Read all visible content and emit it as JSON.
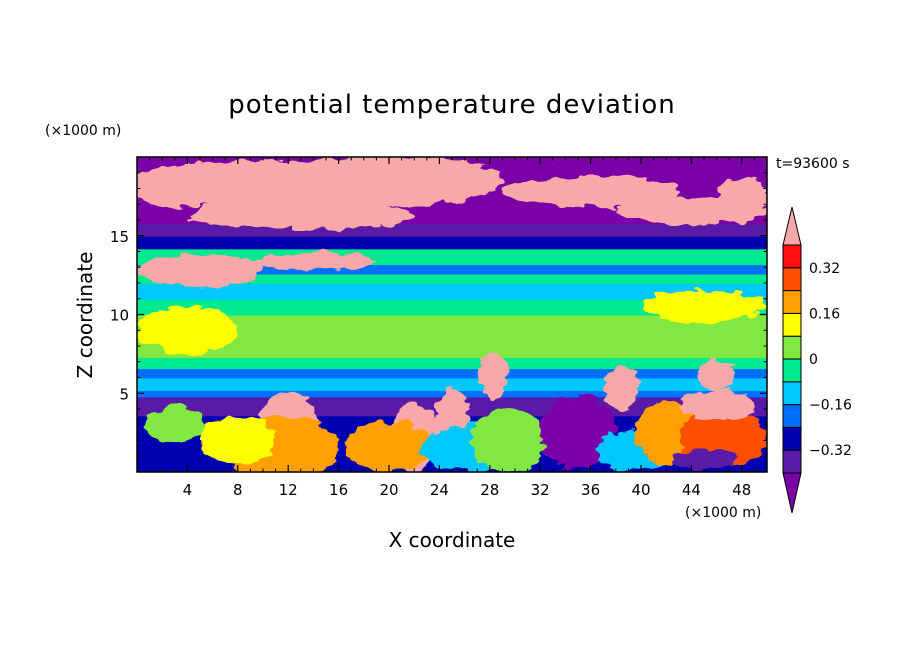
{
  "chart_data": {
    "type": "heatmap",
    "title": "potential temperature deviation",
    "xlabel": "X coordinate",
    "ylabel": "Z coordinate",
    "x_units": "(×1000 m)",
    "y_units": "(×1000 m)",
    "time_label": "t=93600 s",
    "xlim": [
      0,
      50
    ],
    "ylim": [
      0,
      20
    ],
    "x_ticks": [
      4,
      8,
      12,
      16,
      20,
      24,
      28,
      32,
      36,
      40,
      44,
      48
    ],
    "y_ticks": [
      5,
      10,
      15
    ],
    "colorbar": {
      "levels": [
        -0.4,
        -0.32,
        -0.24,
        -0.16,
        -0.08,
        0,
        0.08,
        0.16,
        0.24,
        0.32,
        0.4
      ],
      "labeled_ticks": [
        "0.32",
        "0.16",
        "0",
        "−0.16",
        "−0.32"
      ],
      "labeled_values": [
        0.32,
        0.16,
        0,
        -0.16,
        -0.32
      ],
      "colors_low_to_high": [
        "#7b00a8",
        "#5a1aa8",
        "#0000b0",
        "#0070ff",
        "#00c8ff",
        "#00e890",
        "#80e840",
        "#ffff00",
        "#ffa000",
        "#ff5000",
        "#ff1010",
        "#f8a8a8"
      ],
      "extend": "both"
    },
    "bands": [
      {
        "z0": 0,
        "z1": 1.8,
        "value": -0.3
      },
      {
        "z0": 1.8,
        "z1": 3.6,
        "value": -0.3
      },
      {
        "z0": 3.6,
        "z1": 4.8,
        "value": -0.36
      },
      {
        "z0": 4.8,
        "z1": 5.2,
        "value": -0.2
      },
      {
        "z0": 5.2,
        "z1": 6.0,
        "value": -0.1
      },
      {
        "z0": 6.0,
        "z1": 6.6,
        "value": -0.2
      },
      {
        "z0": 6.6,
        "z1": 7.3,
        "value": -0.04
      },
      {
        "z0": 7.3,
        "z1": 10.0,
        "value": 0.04
      },
      {
        "z0": 10.0,
        "z1": 11.0,
        "value": -0.02
      },
      {
        "z0": 11.0,
        "z1": 12.0,
        "value": -0.12
      },
      {
        "z0": 12.0,
        "z1": 12.6,
        "value": -0.04
      },
      {
        "z0": 12.6,
        "z1": 13.2,
        "value": -0.2
      },
      {
        "z0": 13.2,
        "z1": 14.2,
        "value": -0.04
      },
      {
        "z0": 14.2,
        "z1": 15.0,
        "value": -0.3
      },
      {
        "z0": 15.0,
        "z1": 15.8,
        "value": -0.38
      },
      {
        "z0": 15.8,
        "z1": 20.0,
        "value": -0.45
      }
    ],
    "features": [
      {
        "x": 10,
        "z": 18.2,
        "rx": 12,
        "ry": 1.5,
        "value": 0.45
      },
      {
        "x": 4,
        "z": 17.6,
        "rx": 4,
        "ry": 0.8,
        "value": 0.45
      },
      {
        "x": 20,
        "z": 18.5,
        "rx": 9,
        "ry": 1.6,
        "value": 0.45
      },
      {
        "x": 36,
        "z": 17.8,
        "rx": 7,
        "ry": 1.0,
        "value": 0.45
      },
      {
        "x": 44,
        "z": 16.6,
        "rx": 6,
        "ry": 0.9,
        "value": 0.45
      },
      {
        "x": 13,
        "z": 16.3,
        "rx": 9,
        "ry": 0.9,
        "value": 0.45
      },
      {
        "x": 48,
        "z": 17.5,
        "rx": 2,
        "ry": 1.2,
        "value": 0.45
      },
      {
        "x": 44,
        "z": 19.2,
        "rx": 6,
        "ry": 0.8,
        "value": -0.45
      },
      {
        "x": 5,
        "z": 12.8,
        "rx": 5,
        "ry": 1.0,
        "value": 0.45
      },
      {
        "x": 14,
        "z": 13.4,
        "rx": 5,
        "ry": 0.6,
        "value": 0.45
      },
      {
        "x": 4,
        "z": 9.0,
        "rx": 4,
        "ry": 1.5,
        "value": 0.08
      },
      {
        "x": 45,
        "z": 10.5,
        "rx": 5,
        "ry": 1.0,
        "value": 0.08
      },
      {
        "x": 12,
        "z": 2.5,
        "rx": 2.5,
        "ry": 2.5,
        "value": 0.45
      },
      {
        "x": 11.5,
        "z": 1.5,
        "rx": 4.5,
        "ry": 2.0,
        "value": 0.2
      },
      {
        "x": 8,
        "z": 2.0,
        "rx": 3,
        "ry": 1.5,
        "value": 0.1
      },
      {
        "x": 3,
        "z": 3.0,
        "rx": 2.5,
        "ry": 1.2,
        "value": 0.0
      },
      {
        "x": 22,
        "z": 2.2,
        "rx": 2,
        "ry": 2.2,
        "value": 0.45
      },
      {
        "x": 20,
        "z": 1.6,
        "rx": 3.5,
        "ry": 1.6,
        "value": 0.2
      },
      {
        "x": 25,
        "z": 3.3,
        "rx": 1.4,
        "ry": 2.0,
        "value": 0.45
      },
      {
        "x": 26.5,
        "z": 1.5,
        "rx": 4,
        "ry": 1.5,
        "value": -0.14
      },
      {
        "x": 29.5,
        "z": 2.0,
        "rx": 3,
        "ry": 2.0,
        "value": 0.05
      },
      {
        "x": 35,
        "z": 2.5,
        "rx": 3,
        "ry": 2.3,
        "value": -0.45
      },
      {
        "x": 39.5,
        "z": 1.3,
        "rx": 3,
        "ry": 1.3,
        "value": -0.12
      },
      {
        "x": 42,
        "z": 2.5,
        "rx": 2.5,
        "ry": 2.0,
        "value": 0.2
      },
      {
        "x": 46.5,
        "z": 2.2,
        "rx": 3.5,
        "ry": 1.8,
        "value": 0.3
      },
      {
        "x": 46,
        "z": 4.2,
        "rx": 3,
        "ry": 1.0,
        "value": 0.45
      },
      {
        "x": 38.5,
        "z": 5.3,
        "rx": 1.4,
        "ry": 1.4,
        "value": 0.45
      },
      {
        "x": 28.3,
        "z": 6.2,
        "rx": 1.2,
        "ry": 1.5,
        "value": 0.45
      },
      {
        "x": 46,
        "z": 6.2,
        "rx": 1.5,
        "ry": 1.0,
        "value": 0.45
      },
      {
        "x": 45,
        "z": 0.8,
        "rx": 2.5,
        "ry": 0.7,
        "value": -0.4
      }
    ]
  }
}
